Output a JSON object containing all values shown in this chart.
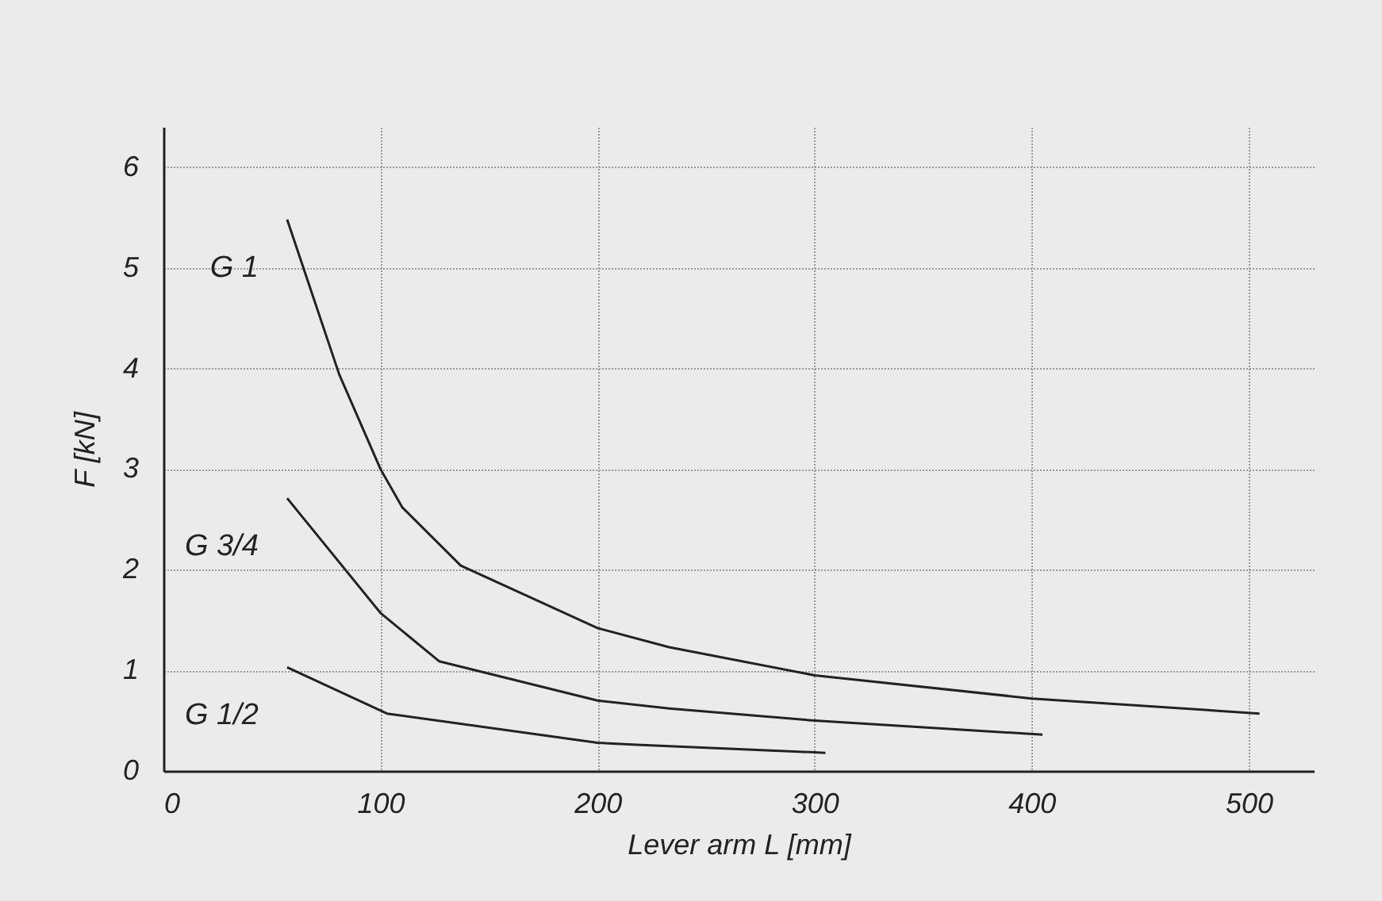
{
  "chart_data": {
    "type": "line",
    "xlabel": "Lever arm  L [mm]",
    "ylabel": "F [kN]",
    "xlim": [
      0,
      530
    ],
    "ylim": [
      0,
      6.4
    ],
    "xticks": [
      0,
      100,
      200,
      300,
      400,
      500
    ],
    "yticks": [
      0,
      1,
      2,
      3,
      4,
      5,
      6
    ],
    "grid": true,
    "legend": false,
    "line_style": "solid",
    "marker": "none",
    "series": [
      {
        "name": "G 1",
        "color": "#222222",
        "x": [
          57,
          81,
          100,
          110,
          137,
          200,
          233,
          300,
          400,
          505
        ],
        "values": [
          5.48,
          3.94,
          3.0,
          2.62,
          2.04,
          1.42,
          1.23,
          0.95,
          0.72,
          0.57
        ]
      },
      {
        "name": "G 3/4",
        "color": "#222222",
        "x": [
          57,
          100,
          127,
          200,
          233,
          300,
          405
        ],
        "values": [
          2.71,
          1.57,
          1.09,
          0.7,
          0.62,
          0.5,
          0.36
        ]
      },
      {
        "name": "G 1/2",
        "color": "#222222",
        "x": [
          57,
          103,
          200,
          218,
          305
        ],
        "values": [
          1.03,
          0.57,
          0.28,
          0.26,
          0.18
        ]
      }
    ]
  }
}
